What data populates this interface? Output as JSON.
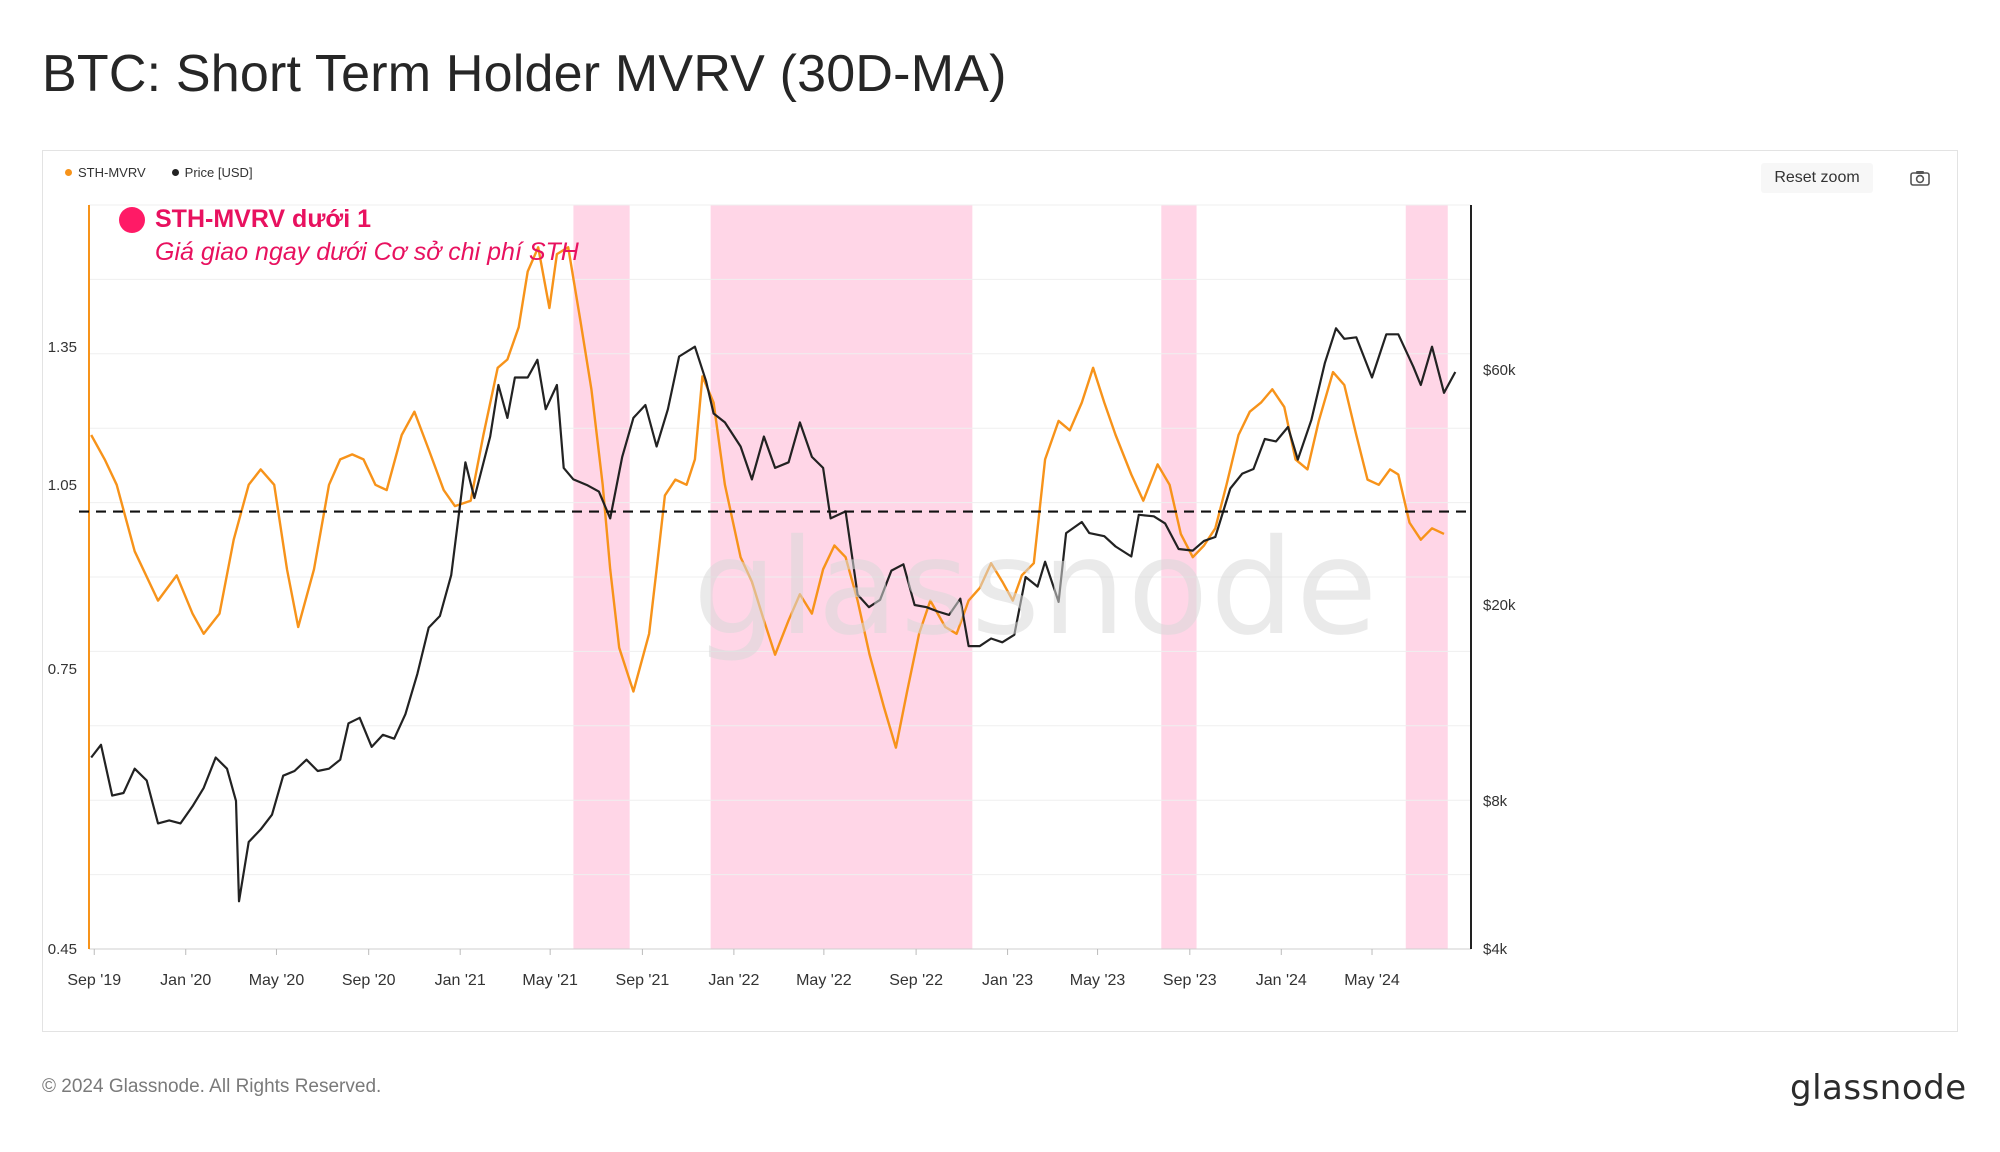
{
  "page": {
    "title": "BTC: Short Term Holder MVRV (30D-MA)",
    "copyright": "© 2024 Glassnode. All Rights Reserved.",
    "logo_text": "glassnode",
    "watermark_text": "glassnode"
  },
  "toolbar": {
    "reset_zoom_label": "Reset zoom",
    "camera_icon": "camera-icon"
  },
  "colors": {
    "mvrv": "#f7931a",
    "price": "#222222",
    "band": "#ffd6e7",
    "annotation": "#e8115f",
    "threshold": "#111111"
  },
  "annotation": {
    "title": "STH-MVRV dưới 1",
    "subtitle": "Giá giao ngay dưới Cơ sở chi phí STH"
  },
  "chart_data": {
    "type": "line",
    "legend_position": "top-left",
    "grid": true,
    "x_ticks": [
      "Sep '19",
      "Jan '20",
      "May '20",
      "Sep '20",
      "Jan '21",
      "May '21",
      "Sep '21",
      "Jan '22",
      "May '22",
      "Sep '22",
      "Jan '23",
      "May '23",
      "Sep '23",
      "Jan '24",
      "May '24"
    ],
    "threshold": 1.0,
    "y_left": {
      "scale": "log",
      "range": [
        0.45,
        1.75
      ],
      "ticks": [
        "1.35",
        "1.05",
        "0.75",
        "0.45"
      ],
      "tick_values": [
        1.35,
        1.05,
        0.75,
        0.45
      ]
    },
    "y_right": {
      "scale": "log",
      "range": [
        4000,
        130000
      ],
      "ticks": [
        "$60k",
        "$20k",
        "$8k",
        "$4k"
      ],
      "tick_values": [
        60000,
        20000,
        8000,
        4000
      ]
    },
    "shaded_ranges": [
      [
        "2021-06-01",
        "2021-08-15"
      ],
      [
        "2021-12-01",
        "2022-11-15"
      ],
      [
        "2023-07-25",
        "2023-09-10"
      ],
      [
        "2024-06-15",
        "2024-08-10"
      ]
    ],
    "series": [
      {
        "name": "STH-MVRV",
        "axis": "left",
        "points": [
          [
            "2019-08-28",
            1.15
          ],
          [
            "2019-09-15",
            1.1
          ],
          [
            "2019-10-01",
            1.05
          ],
          [
            "2019-10-25",
            0.93
          ],
          [
            "2019-11-25",
            0.85
          ],
          [
            "2019-12-20",
            0.89
          ],
          [
            "2020-01-10",
            0.83
          ],
          [
            "2020-01-25",
            0.8
          ],
          [
            "2020-02-15",
            0.83
          ],
          [
            "2020-03-05",
            0.95
          ],
          [
            "2020-03-25",
            1.05
          ],
          [
            "2020-04-10",
            1.08
          ],
          [
            "2020-04-28",
            1.05
          ],
          [
            "2020-05-15",
            0.9
          ],
          [
            "2020-05-30",
            0.81
          ],
          [
            "2020-06-20",
            0.9
          ],
          [
            "2020-07-10",
            1.05
          ],
          [
            "2020-07-25",
            1.1
          ],
          [
            "2020-08-10",
            1.11
          ],
          [
            "2020-08-25",
            1.1
          ],
          [
            "2020-09-10",
            1.05
          ],
          [
            "2020-09-25",
            1.04
          ],
          [
            "2020-10-15",
            1.15
          ],
          [
            "2020-11-01",
            1.2
          ],
          [
            "2020-11-20",
            1.12
          ],
          [
            "2020-12-10",
            1.04
          ],
          [
            "2020-12-25",
            1.01
          ],
          [
            "2021-01-15",
            1.02
          ],
          [
            "2021-02-01",
            1.15
          ],
          [
            "2021-02-20",
            1.3
          ],
          [
            "2021-03-05",
            1.32
          ],
          [
            "2021-03-20",
            1.4
          ],
          [
            "2021-04-01",
            1.55
          ],
          [
            "2021-04-15",
            1.62
          ],
          [
            "2021-04-30",
            1.45
          ],
          [
            "2021-05-10",
            1.6
          ],
          [
            "2021-05-25",
            1.62
          ],
          [
            "2021-06-10",
            1.42
          ],
          [
            "2021-06-25",
            1.25
          ],
          [
            "2021-07-10",
            1.05
          ],
          [
            "2021-07-20",
            0.9
          ],
          [
            "2021-08-01",
            0.78
          ],
          [
            "2021-08-20",
            0.72
          ],
          [
            "2021-09-10",
            0.8
          ],
          [
            "2021-09-20",
            0.9
          ],
          [
            "2021-10-01",
            1.03
          ],
          [
            "2021-10-15",
            1.06
          ],
          [
            "2021-10-30",
            1.05
          ],
          [
            "2021-11-10",
            1.1
          ],
          [
            "2021-11-20",
            1.28
          ],
          [
            "2021-12-05",
            1.22
          ],
          [
            "2021-12-20",
            1.05
          ],
          [
            "2022-01-10",
            0.92
          ],
          [
            "2022-01-25",
            0.88
          ],
          [
            "2022-02-10",
            0.82
          ],
          [
            "2022-02-25",
            0.77
          ],
          [
            "2022-03-15",
            0.82
          ],
          [
            "2022-03-30",
            0.86
          ],
          [
            "2022-04-15",
            0.83
          ],
          [
            "2022-04-30",
            0.9
          ],
          [
            "2022-05-15",
            0.94
          ],
          [
            "2022-05-30",
            0.92
          ],
          [
            "2022-06-15",
            0.85
          ],
          [
            "2022-07-01",
            0.77
          ],
          [
            "2022-07-20",
            0.7
          ],
          [
            "2022-08-05",
            0.65
          ],
          [
            "2022-08-20",
            0.72
          ],
          [
            "2022-09-05",
            0.8
          ],
          [
            "2022-09-20",
            0.85
          ],
          [
            "2022-10-10",
            0.81
          ],
          [
            "2022-10-25",
            0.8
          ],
          [
            "2022-11-10",
            0.85
          ],
          [
            "2022-11-25",
            0.87
          ],
          [
            "2022-12-10",
            0.91
          ],
          [
            "2022-12-25",
            0.88
          ],
          [
            "2023-01-08",
            0.85
          ],
          [
            "2023-01-20",
            0.89
          ],
          [
            "2023-02-05",
            0.91
          ],
          [
            "2023-02-20",
            1.1
          ],
          [
            "2023-03-10",
            1.18
          ],
          [
            "2023-03-25",
            1.16
          ],
          [
            "2023-04-10",
            1.22
          ],
          [
            "2023-04-25",
            1.3
          ],
          [
            "2023-05-10",
            1.22
          ],
          [
            "2023-05-25",
            1.15
          ],
          [
            "2023-06-15",
            1.07
          ],
          [
            "2023-07-01",
            1.02
          ],
          [
            "2023-07-20",
            1.09
          ],
          [
            "2023-08-05",
            1.05
          ],
          [
            "2023-08-20",
            0.96
          ],
          [
            "2023-09-05",
            0.92
          ],
          [
            "2023-09-20",
            0.94
          ],
          [
            "2023-10-05",
            0.97
          ],
          [
            "2023-10-20",
            1.05
          ],
          [
            "2023-11-05",
            1.15
          ],
          [
            "2023-11-20",
            1.2
          ],
          [
            "2023-12-05",
            1.22
          ],
          [
            "2023-12-20",
            1.25
          ],
          [
            "2024-01-05",
            1.21
          ],
          [
            "2024-01-20",
            1.1
          ],
          [
            "2024-02-05",
            1.08
          ],
          [
            "2024-02-20",
            1.18
          ],
          [
            "2024-03-10",
            1.29
          ],
          [
            "2024-03-25",
            1.26
          ],
          [
            "2024-04-10",
            1.15
          ],
          [
            "2024-04-25",
            1.06
          ],
          [
            "2024-05-10",
            1.05
          ],
          [
            "2024-05-25",
            1.08
          ],
          [
            "2024-06-05",
            1.07
          ],
          [
            "2024-06-20",
            0.98
          ],
          [
            "2024-07-05",
            0.95
          ],
          [
            "2024-07-20",
            0.97
          ],
          [
            "2024-08-05",
            0.96
          ]
        ]
      },
      {
        "name": "Price [USD]",
        "axis": "right",
        "points": [
          [
            "2019-08-28",
            9800
          ],
          [
            "2019-09-10",
            10400
          ],
          [
            "2019-09-25",
            8200
          ],
          [
            "2019-10-10",
            8300
          ],
          [
            "2019-10-25",
            9300
          ],
          [
            "2019-11-10",
            8800
          ],
          [
            "2019-11-25",
            7200
          ],
          [
            "2019-12-10",
            7300
          ],
          [
            "2019-12-25",
            7200
          ],
          [
            "2020-01-10",
            7800
          ],
          [
            "2020-01-25",
            8500
          ],
          [
            "2020-02-10",
            9800
          ],
          [
            "2020-02-25",
            9300
          ],
          [
            "2020-03-08",
            8000
          ],
          [
            "2020-03-12",
            5000
          ],
          [
            "2020-03-25",
            6600
          ],
          [
            "2020-04-10",
            7000
          ],
          [
            "2020-04-25",
            7500
          ],
          [
            "2020-05-10",
            9000
          ],
          [
            "2020-05-25",
            9200
          ],
          [
            "2020-06-10",
            9700
          ],
          [
            "2020-06-25",
            9200
          ],
          [
            "2020-07-10",
            9300
          ],
          [
            "2020-07-25",
            9700
          ],
          [
            "2020-08-05",
            11500
          ],
          [
            "2020-08-20",
            11800
          ],
          [
            "2020-09-05",
            10300
          ],
          [
            "2020-09-20",
            10900
          ],
          [
            "2020-10-05",
            10700
          ],
          [
            "2020-10-20",
            12000
          ],
          [
            "2020-11-05",
            14500
          ],
          [
            "2020-11-20",
            18000
          ],
          [
            "2020-12-05",
            19000
          ],
          [
            "2020-12-20",
            23000
          ],
          [
            "2021-01-08",
            39000
          ],
          [
            "2021-01-20",
            33000
          ],
          [
            "2021-02-10",
            44000
          ],
          [
            "2021-02-21",
            56000
          ],
          [
            "2021-03-05",
            48000
          ],
          [
            "2021-03-15",
            58000
          ],
          [
            "2021-04-01",
            58000
          ],
          [
            "2021-04-14",
            63000
          ],
          [
            "2021-04-25",
            50000
          ],
          [
            "2021-05-10",
            56000
          ],
          [
            "2021-05-19",
            38000
          ],
          [
            "2021-06-01",
            36000
          ],
          [
            "2021-06-20",
            35000
          ],
          [
            "2021-07-05",
            34000
          ],
          [
            "2021-07-20",
            30000
          ],
          [
            "2021-08-05",
            40000
          ],
          [
            "2021-08-20",
            48000
          ],
          [
            "2021-09-05",
            51000
          ],
          [
            "2021-09-20",
            42000
          ],
          [
            "2021-10-05",
            50000
          ],
          [
            "2021-10-20",
            64000
          ],
          [
            "2021-11-10",
            67000
          ],
          [
            "2021-11-25",
            57000
          ],
          [
            "2021-12-05",
            49000
          ],
          [
            "2021-12-20",
            47000
          ],
          [
            "2022-01-10",
            42000
          ],
          [
            "2022-01-25",
            36000
          ],
          [
            "2022-02-10",
            44000
          ],
          [
            "2022-02-25",
            38000
          ],
          [
            "2022-03-15",
            39000
          ],
          [
            "2022-03-30",
            47000
          ],
          [
            "2022-04-15",
            40000
          ],
          [
            "2022-04-30",
            38000
          ],
          [
            "2022-05-10",
            30000
          ],
          [
            "2022-05-30",
            31000
          ],
          [
            "2022-06-15",
            21000
          ],
          [
            "2022-06-30",
            19800
          ],
          [
            "2022-07-15",
            20500
          ],
          [
            "2022-07-30",
            23500
          ],
          [
            "2022-08-15",
            24200
          ],
          [
            "2022-08-30",
            20000
          ],
          [
            "2022-09-15",
            19800
          ],
          [
            "2022-09-30",
            19400
          ],
          [
            "2022-10-15",
            19100
          ],
          [
            "2022-10-30",
            20600
          ],
          [
            "2022-11-10",
            16500
          ],
          [
            "2022-11-25",
            16500
          ],
          [
            "2022-12-10",
            17100
          ],
          [
            "2022-12-25",
            16800
          ],
          [
            "2023-01-10",
            17400
          ],
          [
            "2023-01-25",
            22800
          ],
          [
            "2023-02-10",
            21800
          ],
          [
            "2023-02-20",
            24500
          ],
          [
            "2023-03-10",
            20300
          ],
          [
            "2023-03-20",
            28000
          ],
          [
            "2023-04-10",
            29500
          ],
          [
            "2023-04-20",
            28000
          ],
          [
            "2023-05-10",
            27600
          ],
          [
            "2023-05-25",
            26300
          ],
          [
            "2023-06-15",
            25100
          ],
          [
            "2023-06-25",
            30500
          ],
          [
            "2023-07-15",
            30300
          ],
          [
            "2023-07-30",
            29300
          ],
          [
            "2023-08-17",
            26000
          ],
          [
            "2023-09-05",
            25800
          ],
          [
            "2023-09-20",
            27000
          ],
          [
            "2023-10-05",
            27500
          ],
          [
            "2023-10-25",
            34500
          ],
          [
            "2023-11-10",
            37000
          ],
          [
            "2023-11-25",
            37800
          ],
          [
            "2023-12-10",
            43500
          ],
          [
            "2023-12-25",
            43000
          ],
          [
            "2024-01-10",
            46000
          ],
          [
            "2024-01-23",
            39500
          ],
          [
            "2024-02-10",
            47500
          ],
          [
            "2024-02-28",
            62000
          ],
          [
            "2024-03-14",
            73000
          ],
          [
            "2024-03-25",
            69500
          ],
          [
            "2024-04-10",
            70000
          ],
          [
            "2024-04-20",
            64000
          ],
          [
            "2024-05-01",
            58000
          ],
          [
            "2024-05-20",
            71000
          ],
          [
            "2024-06-05",
            71000
          ],
          [
            "2024-06-25",
            61000
          ],
          [
            "2024-07-05",
            56000
          ],
          [
            "2024-07-20",
            67000
          ],
          [
            "2024-08-05",
            54000
          ],
          [
            "2024-08-20",
            59500
          ]
        ]
      }
    ]
  }
}
